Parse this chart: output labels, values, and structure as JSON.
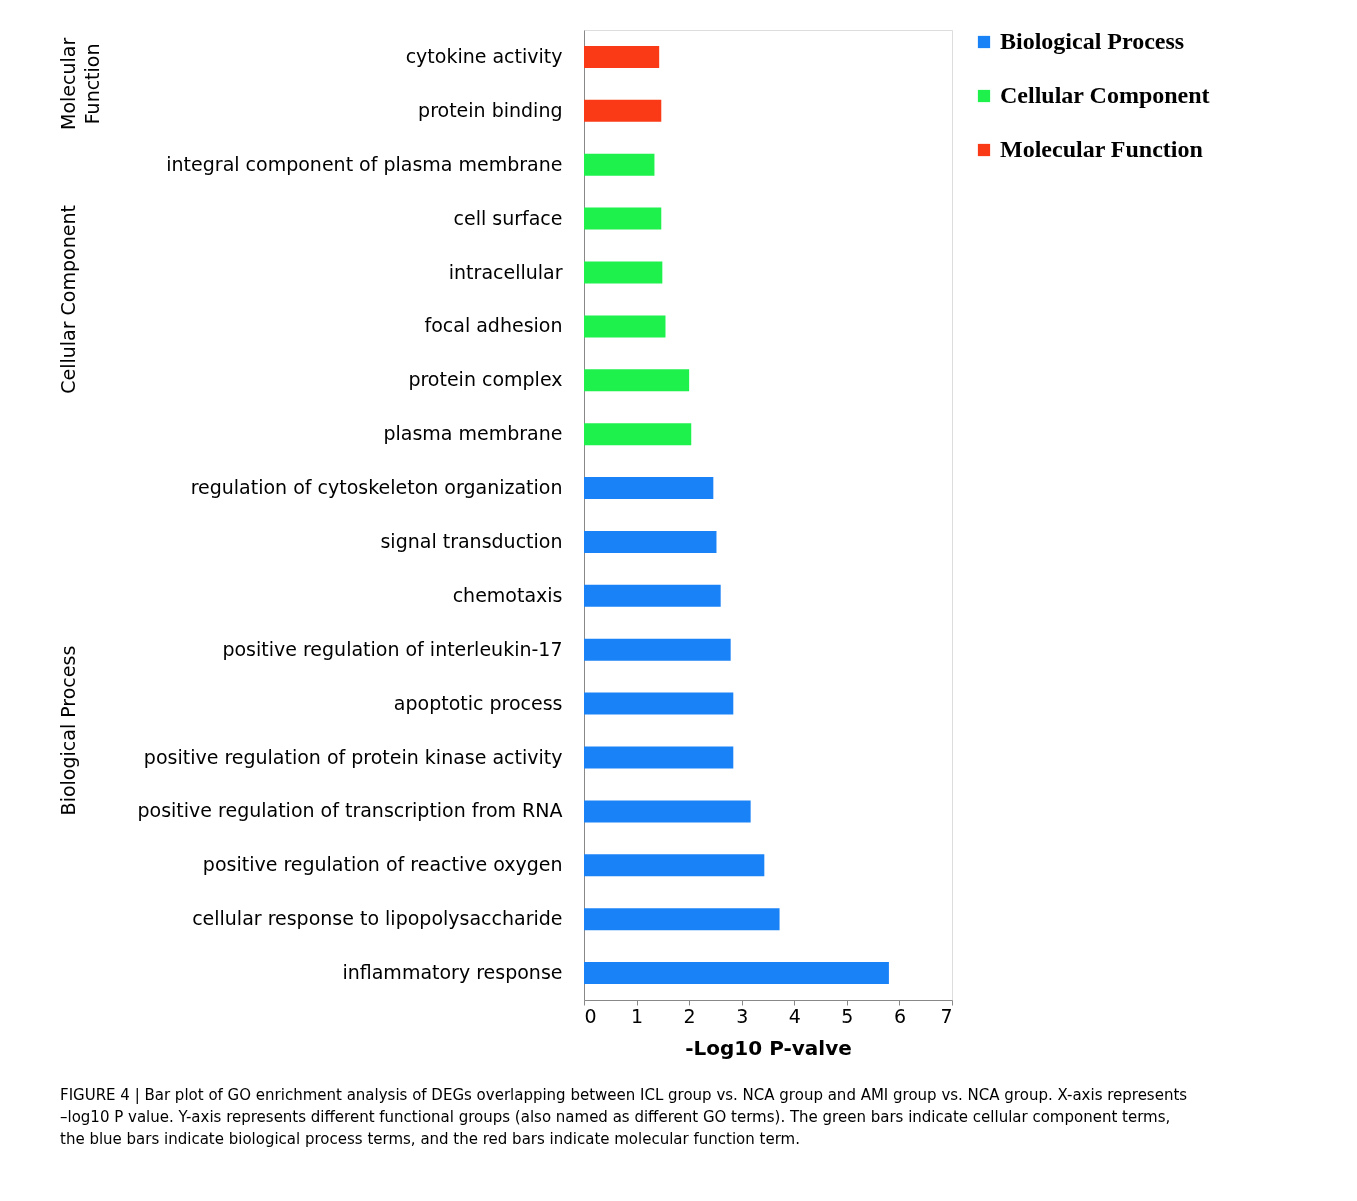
{
  "chart_data": {
    "type": "bar",
    "orientation": "horizontal",
    "title": "FIGURE 4 | Bar plot of GO enrichment analysis of DEGs overlapping between ICL group vs. NCA group and AMI group vs. NCA group. X-axis represents –log10 P value. Y-axis represents different functional groups (also named as different GO terms). The green bars indicate cellular component terms, the blue bars indicate biological process terms, and the red bars indicate molecular function term.",
    "xlabel": "-Log10 P-valve",
    "categories": [
      "cytokine activity",
      "protein binding",
      "integral component of plasma membrane",
      "cell surface",
      "intracellular",
      "focal adhesion",
      "protein complex",
      "plasma membrane",
      "regulation of cytoskeleton organization",
      "signal transduction",
      "chemotaxis",
      "positive regulation of interleukin-17",
      "apoptotic process",
      "positive regulation of protein kinase activity",
      "positive regulation of transcription from RNA",
      "positive regulation of reactive oxygen",
      "cellular response to lipopolysaccharide",
      "inflammatory response"
    ],
    "series": [
      {
        "name": "Biological Process",
        "color": "#1a82f7",
        "values": [
          null,
          null,
          null,
          null,
          null,
          null,
          null,
          null,
          2.46,
          2.52,
          2.6,
          2.79,
          2.84,
          2.84,
          3.17,
          3.43,
          3.72,
          5.8
        ]
      },
      {
        "name": "Cellular Component",
        "color": "#1ef04c",
        "values": [
          null,
          null,
          1.34,
          1.47,
          1.49,
          1.55,
          2.0,
          2.04,
          null,
          null,
          null,
          null,
          null,
          null,
          null,
          null,
          null,
          null
        ]
      },
      {
        "name": "Molecular Function",
        "color": "#fa3a17",
        "values": [
          1.43,
          1.47,
          null,
          null,
          null,
          null,
          null,
          null,
          null,
          null,
          null,
          null,
          null,
          null,
          null,
          null,
          null,
          null
        ]
      }
    ],
    "annotations": [
      "Molecular Function",
      "Cellular Component",
      "Biological Process"
    ],
    "xlim": [
      0,
      7
    ],
    "xticks": [
      0,
      1,
      2,
      3,
      4,
      5,
      6,
      7
    ],
    "grid": false,
    "legend": "right"
  }
}
